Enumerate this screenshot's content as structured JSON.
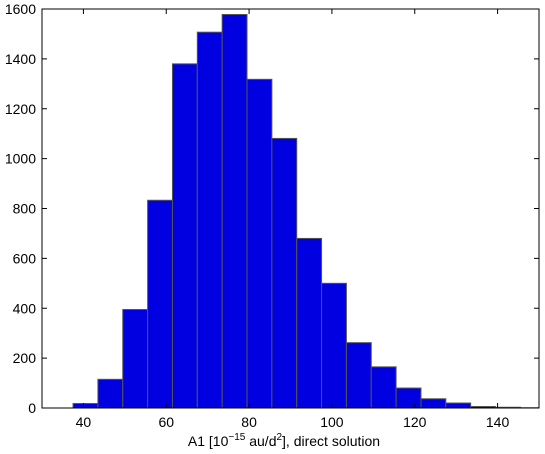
{
  "chart_data": {
    "type": "bar",
    "subtype": "histogram",
    "bar_color": "#0000E0",
    "edge_color": "#555555",
    "xlim": [
      30,
      150
    ],
    "ylim": [
      0,
      1600
    ],
    "xticks": [
      40,
      60,
      80,
      100,
      120,
      140
    ],
    "yticks": [
      0,
      200,
      400,
      600,
      800,
      1000,
      1200,
      1400,
      1600
    ],
    "xlabel": {
      "prefix": "A1 [10",
      "exp1": "−15",
      "mid": " au/d",
      "exp2": "2",
      "suffix": "], direct solution"
    },
    "grid": false,
    "bins": [
      {
        "x0": 37.5,
        "x1": 43.5,
        "value": 18
      },
      {
        "x0": 43.5,
        "x1": 49.5,
        "value": 115
      },
      {
        "x0": 49.5,
        "x1": 55.5,
        "value": 395
      },
      {
        "x0": 55.5,
        "x1": 61.5,
        "value": 833
      },
      {
        "x0": 61.5,
        "x1": 67.5,
        "value": 1380
      },
      {
        "x0": 67.5,
        "x1": 73.5,
        "value": 1507
      },
      {
        "x0": 73.5,
        "x1": 79.5,
        "value": 1578
      },
      {
        "x0": 79.5,
        "x1": 85.5,
        "value": 1318
      },
      {
        "x0": 85.5,
        "x1": 91.5,
        "value": 1081
      },
      {
        "x0": 91.5,
        "x1": 97.5,
        "value": 680
      },
      {
        "x0": 97.5,
        "x1": 103.5,
        "value": 500
      },
      {
        "x0": 103.5,
        "x1": 109.5,
        "value": 262
      },
      {
        "x0": 109.5,
        "x1": 115.5,
        "value": 165
      },
      {
        "x0": 115.5,
        "x1": 121.5,
        "value": 80
      },
      {
        "x0": 121.5,
        "x1": 127.5,
        "value": 37
      },
      {
        "x0": 127.5,
        "x1": 133.5,
        "value": 20
      },
      {
        "x0": 133.5,
        "x1": 139.5,
        "value": 6
      },
      {
        "x0": 139.5,
        "x1": 145.5,
        "value": 3
      },
      {
        "x0": 145.5,
        "x1": 151.5,
        "value": 1
      }
    ]
  }
}
